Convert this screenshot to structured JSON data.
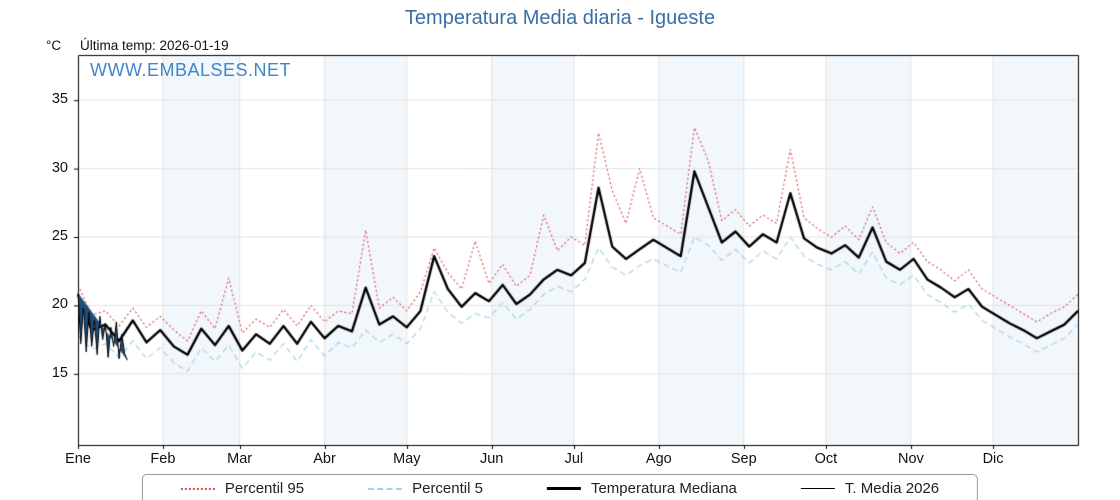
{
  "header": {
    "title": "Temperatura Media diaria - Igueste",
    "unit_label": "°C",
    "last_temp_label": "Última temp: 2026-01-19",
    "watermark": "WWW.EMBALSES.NET"
  },
  "colors": {
    "title_blue": "#3b6ea5",
    "watermark_blue": "#3e86c8",
    "p95_red": "#d94f4f",
    "p5_lightblue": "#a6d4e6",
    "median_black": "#000000",
    "fill_2026": "#1f4e79",
    "band_fill": "#f2f7fb",
    "grid": "#e3e3e3"
  },
  "chart_data": {
    "type": "line",
    "title": "Temperatura Media diaria - Igueste",
    "xlabel": "",
    "ylabel": "°C",
    "ylim": [
      9.8,
      38.3
    ],
    "yticks": [
      15,
      20,
      25,
      30,
      35
    ],
    "grid": true,
    "legend_position": "bottom",
    "x_unit": "day_of_year",
    "days_total": 365,
    "months": [
      {
        "label": "Ene",
        "start": 0
      },
      {
        "label": "Feb",
        "start": 31
      },
      {
        "label": "Mar",
        "start": 59
      },
      {
        "label": "Abr",
        "start": 90
      },
      {
        "label": "May",
        "start": 120
      },
      {
        "label": "Jun",
        "start": 151
      },
      {
        "label": "Jul",
        "start": 181
      },
      {
        "label": "Ago",
        "start": 212
      },
      {
        "label": "Sep",
        "start": 243
      },
      {
        "label": "Oct",
        "start": 273
      },
      {
        "label": "Nov",
        "start": 304
      },
      {
        "label": "Dic",
        "start": 334
      }
    ],
    "series": [
      {
        "name": "Percentil 95",
        "color": "#d94f4f",
        "style": "dotted",
        "width": 1.1,
        "step_days": 5,
        "values": [
          21.5,
          19.3,
          19.6,
          18.5,
          19.8,
          18.4,
          19.2,
          18.2,
          17.4,
          19.6,
          18.3,
          22.0,
          18.0,
          19.0,
          18.4,
          19.7,
          18.5,
          20.0,
          18.8,
          19.6,
          19.4,
          25.5,
          19.8,
          20.6,
          19.6,
          21.0,
          24.2,
          22.4,
          21.2,
          24.7,
          21.6,
          23.0,
          21.4,
          22.2,
          26.6,
          24.0,
          25.0,
          24.4,
          32.6,
          28.4,
          26.0,
          30.0,
          26.4,
          25.8,
          25.2,
          33.0,
          30.6,
          26.2,
          27.0,
          25.8,
          26.6,
          26.0,
          31.4,
          26.4,
          25.6,
          25.0,
          25.8,
          24.8,
          27.2,
          24.6,
          23.8,
          24.6,
          23.2,
          22.6,
          21.8,
          22.6,
          21.2,
          20.6,
          20.0,
          19.4,
          18.8,
          19.4,
          19.9,
          20.8
        ]
      },
      {
        "name": "Percentil 5",
        "color": "#a6d4e6",
        "style": "dashed",
        "width": 1.2,
        "step_days": 5,
        "values": [
          17.8,
          16.8,
          17.2,
          16.2,
          17.4,
          16.1,
          16.9,
          15.8,
          15.2,
          16.9,
          15.9,
          17.1,
          15.4,
          16.6,
          16.0,
          17.2,
          15.9,
          17.5,
          16.3,
          17.3,
          16.9,
          18.2,
          17.3,
          17.9,
          17.2,
          18.3,
          21.0,
          19.5,
          18.7,
          19.4,
          19.1,
          20.2,
          19.0,
          19.7,
          20.8,
          21.4,
          21.0,
          21.9,
          24.2,
          22.8,
          22.2,
          22.9,
          23.4,
          22.9,
          22.4,
          25.0,
          24.4,
          23.3,
          24.1,
          23.1,
          24.0,
          23.4,
          25.0,
          23.6,
          23.0,
          22.6,
          23.2,
          22.3,
          23.9,
          22.0,
          21.5,
          22.2,
          20.8,
          20.2,
          19.5,
          20.1,
          18.9,
          18.3,
          17.7,
          17.2,
          16.6,
          17.1,
          17.6,
          18.6
        ]
      },
      {
        "name": "Temperatura Mediana",
        "color": "#000000",
        "style": "solid",
        "width": 2.4,
        "step_days": 5,
        "values": [
          20.8,
          18.2,
          18.6,
          17.4,
          18.9,
          17.3,
          18.2,
          17.0,
          16.4,
          18.3,
          17.1,
          18.5,
          16.7,
          17.9,
          17.2,
          18.5,
          17.2,
          18.8,
          17.6,
          18.5,
          18.1,
          21.3,
          18.6,
          19.2,
          18.4,
          19.6,
          23.6,
          21.2,
          19.9,
          20.9,
          20.3,
          21.5,
          20.1,
          20.8,
          21.9,
          22.6,
          22.2,
          23.1,
          28.6,
          24.3,
          23.4,
          24.1,
          24.8,
          24.2,
          23.6,
          29.8,
          27.2,
          24.6,
          25.4,
          24.3,
          25.2,
          24.6,
          28.2,
          24.9,
          24.2,
          23.8,
          24.4,
          23.5,
          25.7,
          23.2,
          22.6,
          23.4,
          21.9,
          21.3,
          20.6,
          21.2,
          19.9,
          19.3,
          18.7,
          18.2,
          17.6,
          18.1,
          18.6,
          19.6
        ]
      },
      {
        "name": "T. Media 2026",
        "color": "#000000",
        "style": "solid",
        "width": 1,
        "step_days": 1,
        "fill": "#1f4e79",
        "values": [
          20.9,
          17.2,
          19.8,
          16.6,
          19.5,
          17.0,
          18.9,
          16.4,
          19.2,
          17.5,
          18.7,
          16.2,
          18.4,
          17.0,
          18.8,
          16.1,
          17.9,
          16.5,
          16.0
        ]
      }
    ]
  }
}
